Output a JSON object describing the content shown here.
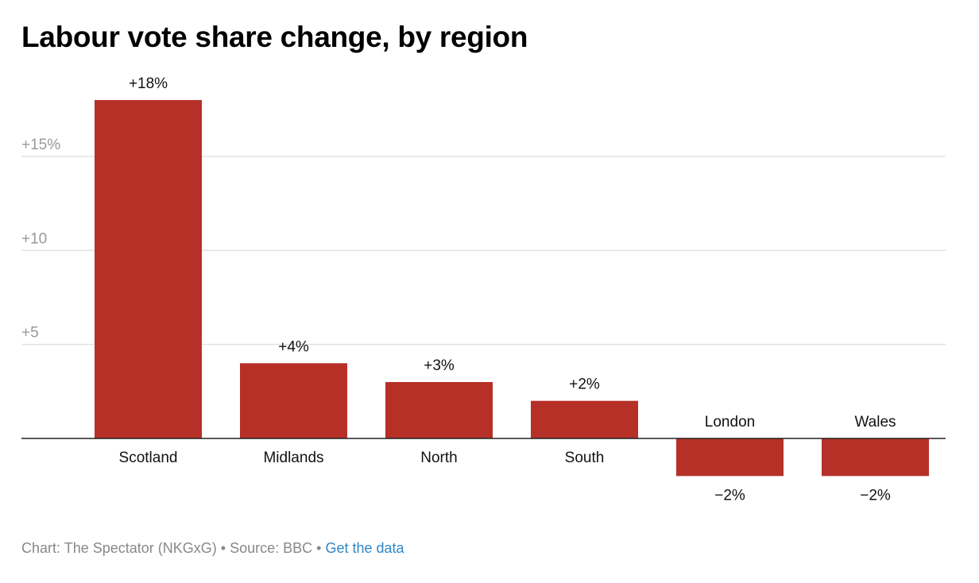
{
  "chart_data": {
    "type": "bar",
    "title": "Labour vote share change, by region",
    "categories": [
      "Scotland",
      "Midlands",
      "North",
      "South",
      "London",
      "Wales"
    ],
    "values": [
      18,
      4,
      3,
      2,
      -2,
      -2
    ],
    "value_labels": [
      "+18%",
      "+4%",
      "+3%",
      "+2%",
      "−2%",
      "−2%"
    ],
    "yticks": [
      5,
      10,
      15
    ],
    "ytick_labels": [
      "+5",
      "+10",
      "+15%"
    ],
    "ylim": [
      -2,
      18
    ],
    "grid": true,
    "xlabel": "",
    "ylabel": "",
    "bar_color": "#b63028"
  },
  "footer": {
    "credit": "Chart: The Spectator (NKGxG)",
    "separator": " • ",
    "source": "Source: BBC",
    "link": "Get the data"
  }
}
